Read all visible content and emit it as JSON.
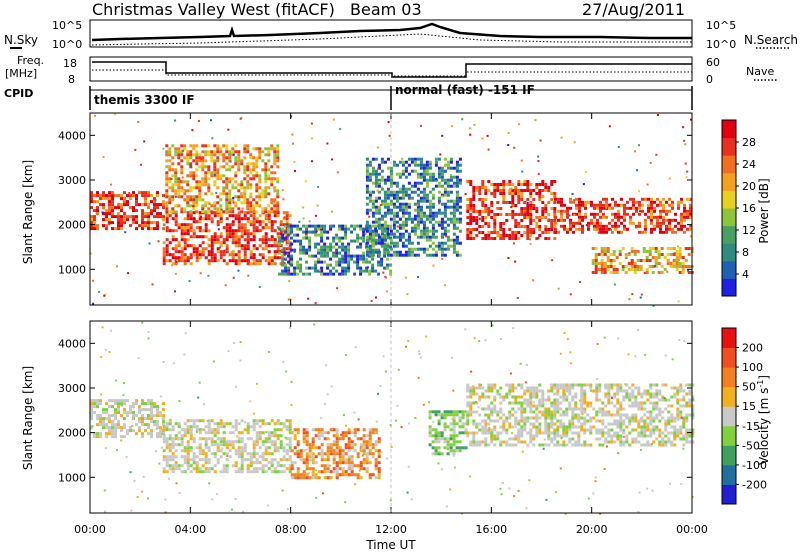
{
  "header": {
    "station": "Christmas Valley West (fitACF)",
    "beam": "Beam 03",
    "date": "27/Aug/2011"
  },
  "top_panels": {
    "nsky_label": "N.Sky",
    "nsky_ticks": [
      "10^5",
      "10^0"
    ],
    "nsearch_label": "N.Search",
    "nsearch_ticks": [
      "10^5",
      "10^0"
    ],
    "freq_label_1": "Freq.",
    "freq_label_2": "[MHz]",
    "freq_ticks": [
      "18",
      "8"
    ],
    "nave_label": "Nave",
    "nave_ticks": [
      "60",
      "0"
    ],
    "cpid_label": "CPID",
    "cpid_segments": [
      {
        "start_hour": 0,
        "text": "themis 3300 IF"
      },
      {
        "start_hour": 12,
        "text": "normal (fast) -151 IF"
      }
    ]
  },
  "chart_data": [
    {
      "type": "heatmap",
      "name": "power",
      "xlabel": "Time UT",
      "ylabel": "Slant Range [km]",
      "xlim": [
        0,
        24
      ],
      "ylim": [
        200,
        4500
      ],
      "yticks": [
        1000,
        2000,
        3000,
        4000
      ],
      "colorbar": {
        "label": "Power [dB]",
        "ticks": [
          "4",
          "8",
          "12",
          "16",
          "20",
          "24",
          "28"
        ],
        "range": [
          0,
          32
        ],
        "colors": [
          "#2020e0",
          "#1f5fb5",
          "#2e8b80",
          "#4aa060",
          "#8cc43a",
          "#e8d020",
          "#f5a020",
          "#f07020",
          "#e83020",
          "#e00010"
        ]
      },
      "echo_bands": [
        {
          "t0": 0.0,
          "t1": 2.9,
          "r0": 1900,
          "r1": 2750,
          "level": "high"
        },
        {
          "t0": 2.9,
          "t1": 8.0,
          "r0": 1150,
          "r1": 2300,
          "level": "high"
        },
        {
          "t0": 3.0,
          "t1": 7.5,
          "r0": 2300,
          "r1": 3800,
          "level": "mid"
        },
        {
          "t0": 7.5,
          "t1": 12.0,
          "r0": 900,
          "r1": 2000,
          "level": "low"
        },
        {
          "t0": 11.0,
          "t1": 14.8,
          "r0": 1300,
          "r1": 3500,
          "level": "low"
        },
        {
          "t0": 15.0,
          "t1": 18.5,
          "r0": 1700,
          "r1": 3000,
          "level": "high"
        },
        {
          "t0": 18.5,
          "t1": 24.0,
          "r0": 1800,
          "r1": 2600,
          "level": "high"
        },
        {
          "t0": 20.0,
          "t1": 24.0,
          "r0": 900,
          "r1": 1500,
          "level": "mid"
        }
      ]
    },
    {
      "type": "heatmap",
      "name": "velocity",
      "xlabel": "Time UT",
      "ylabel": "Slant Range [km]",
      "xlim": [
        0,
        24
      ],
      "ylim": [
        200,
        4500
      ],
      "yticks": [
        1000,
        2000,
        3000,
        4000
      ],
      "xticks": [
        "00:00",
        "04:00",
        "08:00",
        "12:00",
        "16:00",
        "20:00",
        "00:00"
      ],
      "colorbar": {
        "label": "Velocity [m s",
        "label_sup": "-1",
        "label_end": "]",
        "ticks": [
          "200",
          "100",
          "50",
          "15",
          "-15",
          "-50",
          "-100",
          "-200"
        ],
        "colors": [
          "#2020d0",
          "#1f6fa0",
          "#3f9f5f",
          "#80d040",
          "#c8c8c8",
          "#f0b020",
          "#f08020",
          "#f05020",
          "#e81010"
        ]
      },
      "echo_bands": [
        {
          "t0": 0.0,
          "t1": 2.9,
          "r0": 1900,
          "r1": 2750,
          "color": "gray"
        },
        {
          "t0": 2.9,
          "t1": 8.0,
          "r0": 1150,
          "r1": 2300,
          "color": "gray"
        },
        {
          "t0": 8.0,
          "t1": 11.5,
          "r0": 1000,
          "r1": 2100,
          "color": "orange"
        },
        {
          "t0": 13.5,
          "t1": 15.0,
          "r0": 1500,
          "r1": 2500,
          "color": "green"
        },
        {
          "t0": 15.0,
          "t1": 24.0,
          "r0": 1700,
          "r1": 3100,
          "color": "gray"
        }
      ]
    }
  ]
}
